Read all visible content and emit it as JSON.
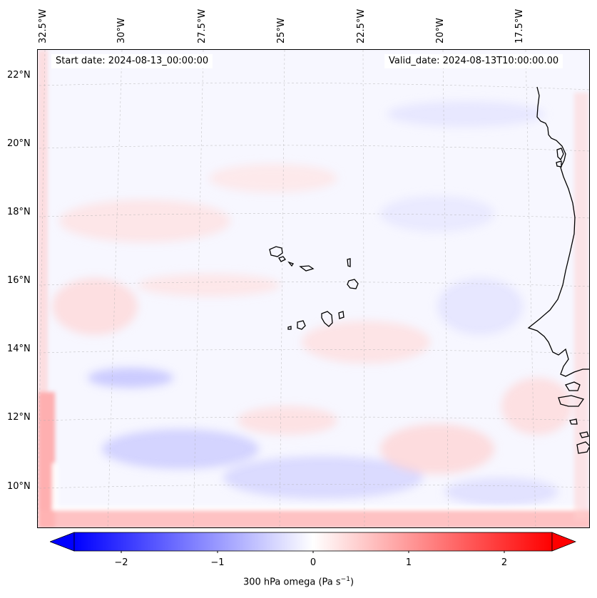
{
  "map": {
    "start_date": "Start date: 2024-08-13_00:00:00",
    "valid_date": "Valid_date: 2024-08-13T10:00:00.00",
    "lon_labels": [
      "32.5°W",
      "30°W",
      "27.5°W",
      "25°W",
      "22.5°W",
      "20°W",
      "17.5°W"
    ],
    "lat_labels": [
      "22°N",
      "20°N",
      "18°N",
      "16°N",
      "14°N",
      "12°N",
      "10°N"
    ],
    "field": "300 hPa omega",
    "colormap": "bwr",
    "colors": {
      "negative": "#0000ff",
      "neutral": "#ffffff",
      "positive": "#ff0000",
      "coastline": "#000000",
      "grid": "#b0b0b0"
    }
  },
  "colorbar": {
    "ticks": [
      "−2",
      "−1",
      "0",
      "1",
      "2"
    ],
    "tick_values": [
      -2,
      -1,
      0,
      1,
      2
    ],
    "range": [
      -2.6,
      2.6
    ],
    "extend": "both",
    "label_main": "300 hPa omega (Pa s",
    "label_sup": "−1",
    "label_end": ")"
  }
}
